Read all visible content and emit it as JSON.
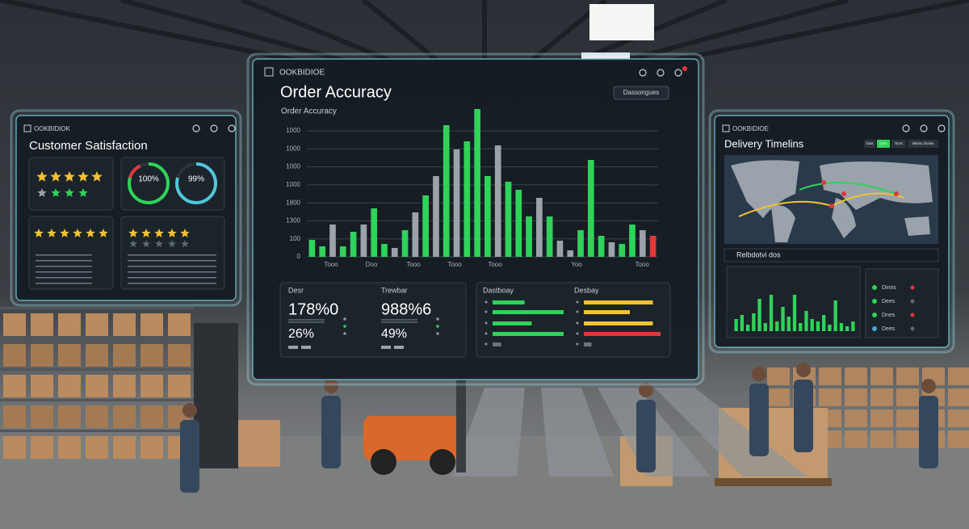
{
  "main": {
    "header": "OOKBIDIOE",
    "title": "Order Accuracy",
    "button": "Dassongues",
    "chart_label": "Order Accuracy",
    "axis_labels": [
      "1000",
      "1000",
      "1000",
      "1000",
      "1800",
      "1300",
      "100",
      "0"
    ],
    "x_labels": [
      "Tooo",
      "Doo",
      "Tooo",
      "Tooo",
      "Tooo",
      "Yoo",
      "Tooo"
    ],
    "ylim": [
      0,
      190
    ],
    "bars": {
      "values": [
        21,
        13,
        40,
        13,
        31,
        40,
        60,
        16,
        11,
        33,
        55,
        76,
        100,
        163,
        133,
        143,
        183,
        100,
        138,
        93,
        83,
        50,
        73,
        50,
        20,
        8,
        33,
        120,
        26,
        18,
        16,
        40,
        33,
        26
      ],
      "colors": [
        "#2fd35a",
        "#2fd35a",
        "#9aa3a8",
        "#2fd35a",
        "#2fd35a",
        "#9aa3a8",
        "#2fd35a",
        "#2fd35a",
        "#9aa3a8",
        "#2fd35a",
        "#9aa3a8",
        "#2fd35a",
        "#9aa3a8",
        "#2fd35a",
        "#9aa3a8",
        "#2fd35a",
        "#2fd35a",
        "#2fd35a",
        "#9aa3a8",
        "#2fd35a",
        "#2fd35a",
        "#2fd35a",
        "#9aa3a8",
        "#2fd35a",
        "#9aa3a8",
        "#9aa3a8",
        "#2fd35a",
        "#2fd35a",
        "#2fd35a",
        "#9aa3a8",
        "#2fd35a",
        "#2fd35a",
        "#9aa3a8",
        "#e0373a"
      ]
    }
  },
  "stats": [
    {
      "label": "Desr",
      "big": "178%0",
      "small": "26%"
    },
    {
      "label": "Trewbar",
      "big": "988%6",
      "small": "49%"
    }
  ],
  "progress": {
    "xlim": [
      0,
      100
    ],
    "groups": [
      {
        "label": "Dastboay",
        "values": [
          45,
          100,
          55,
          100,
          12
        ],
        "colors": [
          "#2fd35a",
          "#2fd35a",
          "#2fd35a",
          "#2fd35a",
          "#6b7378"
        ]
      },
      {
        "label": "Desbay",
        "values": [
          90,
          60,
          90,
          100,
          10
        ],
        "colors": [
          "#f2c230",
          "#f2c230",
          "#f2c230",
          "#e0373a",
          "#6b7378"
        ]
      }
    ]
  },
  "left": {
    "header": "OOKBIDIOK",
    "title": "Customer Satisfaction",
    "rings": [
      "100%",
      "99%"
    ]
  },
  "right": {
    "header": "OOKBIDIOE",
    "title": "Delivery Timelins",
    "tabs": [
      "Dias",
      "Dise",
      "Tcmc",
      "Wiurio Dusks"
    ],
    "section": "Relbdotvi dos",
    "chart": {
      "ylim": [
        0,
        60
      ],
      "values": [
        15,
        20,
        8,
        22,
        40,
        10,
        45,
        12,
        30,
        18,
        45,
        10,
        25,
        15,
        12,
        20,
        8,
        38,
        10,
        6,
        12
      ]
    },
    "legend": [
      "Dinns",
      "Dees",
      "Dnes",
      "Dees"
    ]
  }
}
